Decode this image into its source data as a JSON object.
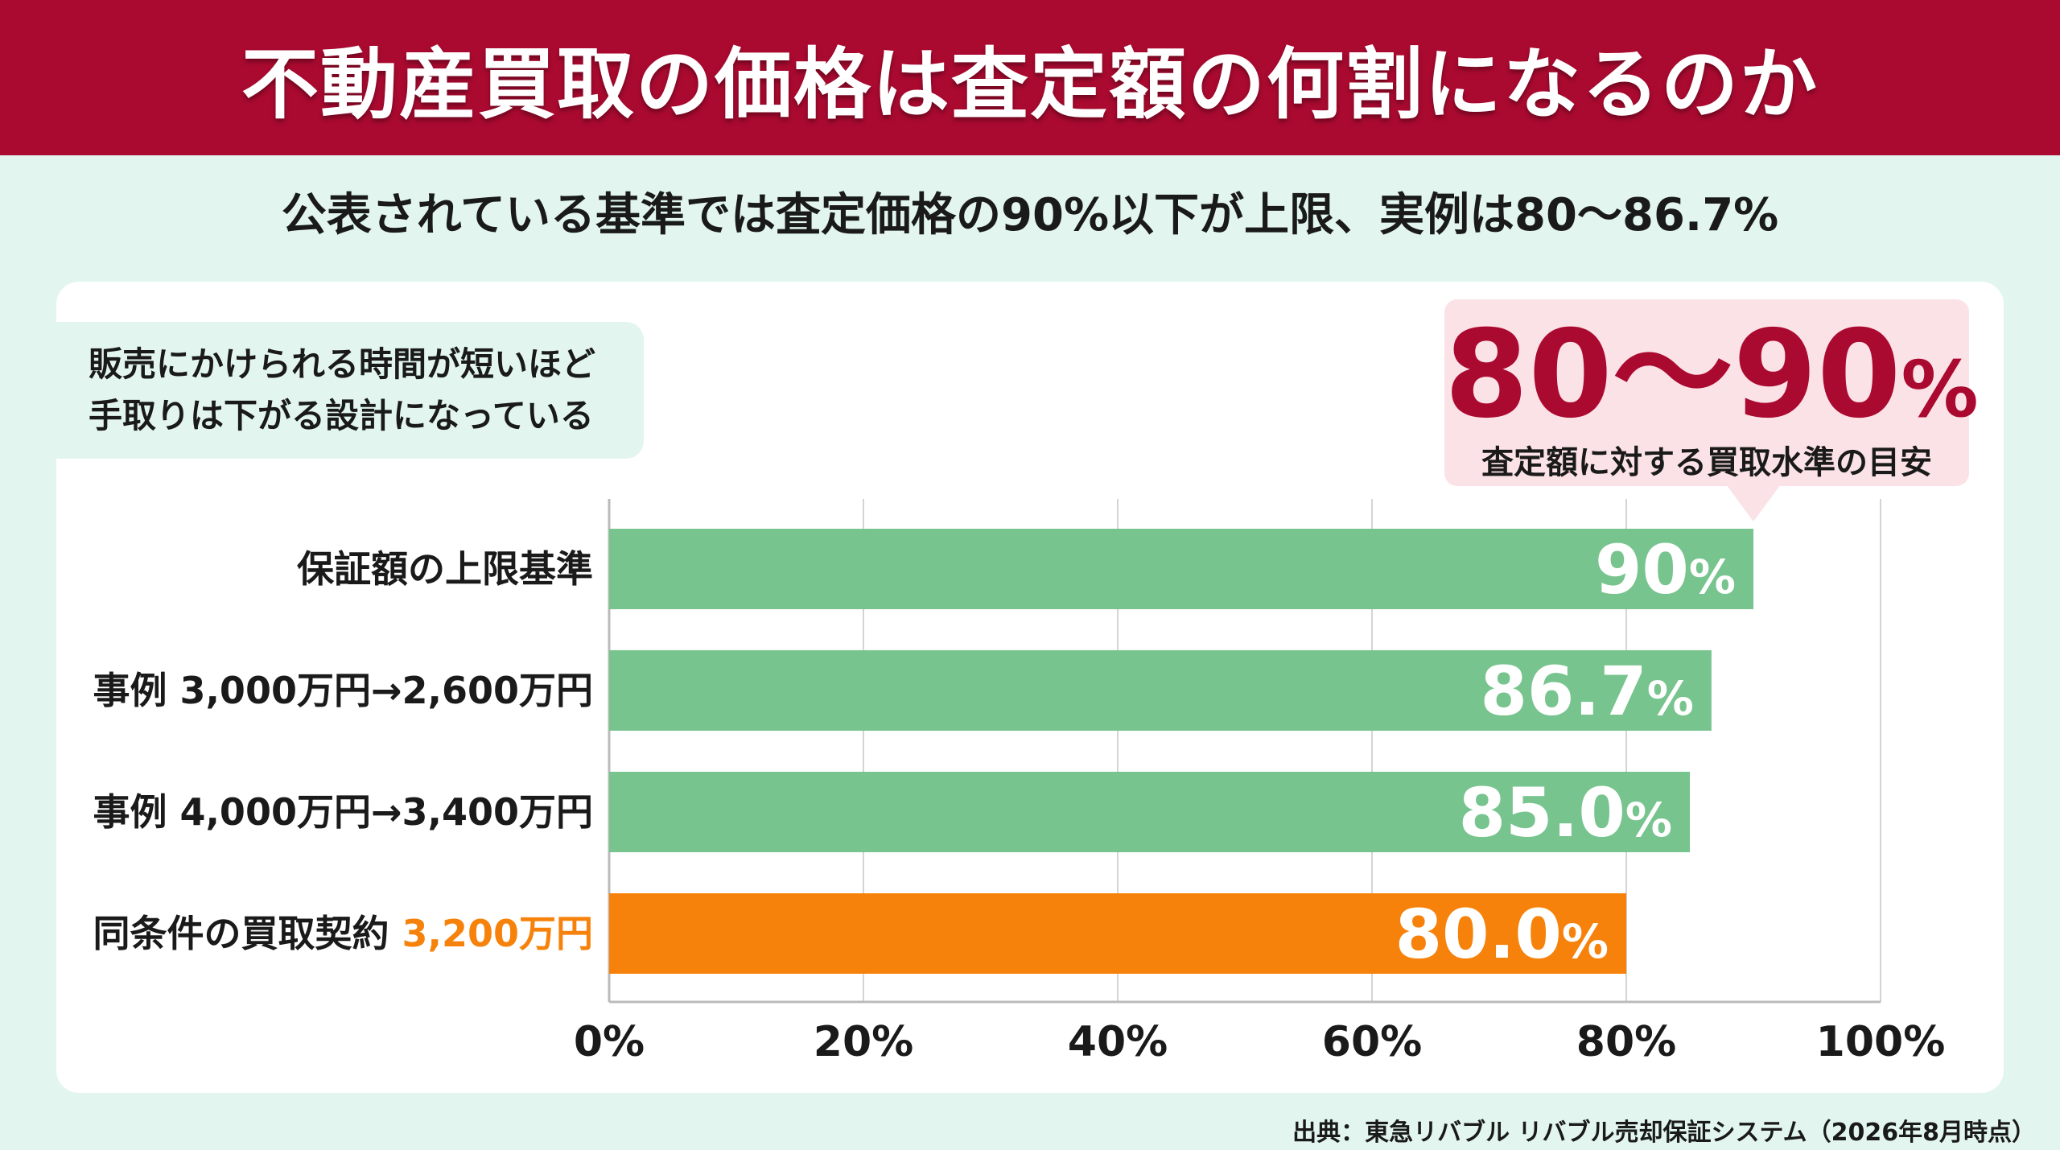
{
  "title": "不動産買取の価格は査定額の何割になるのか",
  "subtitle": "公表されている基準では査定価格の90%以下が上限、実例は80〜86.7%",
  "note": {
    "line1": "販売にかけられる時間が短いほど",
    "line2": "手取りは下がる設計になっている"
  },
  "callout": {
    "value": "80〜90",
    "unit": "%",
    "label": "査定額に対する買取水準の目安"
  },
  "source": "出典：東急リバブル リバブル売却保証システム（2026年8月時点）",
  "colors": {
    "title_bg": "#ab0a30",
    "accent": "#ab0a30",
    "bar_green": "#78c48e",
    "bar_orange": "#f6820b",
    "page_bg": "#e2f6ef"
  },
  "chart_data": {
    "type": "bar",
    "orientation": "horizontal",
    "categories": [
      {
        "label": "保証額の上限基準",
        "highlight": ""
      },
      {
        "label": "事例 3,000万円→2,600万円",
        "highlight": ""
      },
      {
        "label": "事例 4,000万円→3,400万円",
        "highlight": ""
      },
      {
        "label": "同条件の買取契約",
        "highlight": "3,200万円"
      }
    ],
    "values": [
      90,
      86.7,
      85.0,
      80.0
    ],
    "value_labels": [
      "90",
      "86.7",
      "85.0",
      "80.0"
    ],
    "value_unit": "%",
    "bar_colors": [
      "#78c48e",
      "#78c48e",
      "#78c48e",
      "#f6820b"
    ],
    "xlim": [
      0,
      100
    ],
    "xticks": [
      0,
      20,
      40,
      60,
      80,
      100
    ],
    "xtick_labels": [
      "0%",
      "20%",
      "40%",
      "60%",
      "80%",
      "100%"
    ],
    "grid": true,
    "legend": "none"
  }
}
